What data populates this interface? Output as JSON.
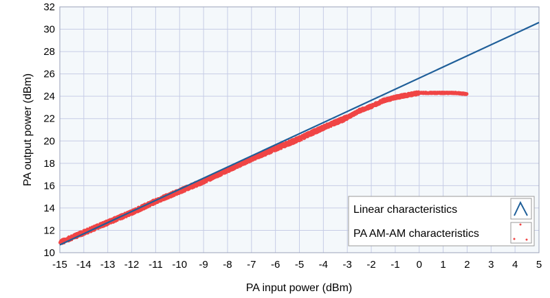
{
  "chart_data": {
    "type": "scatter",
    "title": "",
    "xlabel": "PA input power (dBm)",
    "ylabel": "PA output power (dBm)",
    "xlim": [
      -15,
      5
    ],
    "ylim": [
      10,
      32
    ],
    "xticks": [
      -15,
      -14,
      -13,
      -12,
      -11,
      -10,
      -9,
      -8,
      -7,
      -6,
      -5,
      -4,
      -3,
      -2,
      -1,
      0,
      1,
      2,
      3,
      4,
      5
    ],
    "xtick_labels": [
      "-15",
      "-14",
      "-13",
      "-12",
      "-11",
      "-10",
      "-9",
      "-8",
      "-7",
      "-6",
      "-5",
      "-4",
      "-3",
      "-2",
      "-1",
      "0",
      "1",
      "2",
      "3",
      "4",
      "5"
    ],
    "yticks": [
      10,
      12,
      14,
      16,
      18,
      20,
      22,
      24,
      26,
      28,
      30,
      32
    ],
    "ytick_labels": [
      "10",
      "12",
      "14",
      "16",
      "18",
      "20",
      "22",
      "24",
      "26",
      "28",
      "30",
      "32"
    ],
    "grid": true,
    "legend_position": "bottom-right",
    "series": [
      {
        "name": "Linear characteristics",
        "kind": "line",
        "color": "#1f5f99",
        "x": [
          -15,
          5
        ],
        "y": [
          10.7,
          30.6
        ]
      },
      {
        "name": "PA AM-AM characteristics",
        "kind": "scatter",
        "color": "#f04545",
        "x": [
          -15,
          -14,
          -13,
          -12,
          -11,
          -10,
          -9,
          -8,
          -7,
          -6,
          -5,
          -4,
          -3,
          -2.5,
          -2,
          -1.5,
          -1,
          -0.5,
          0,
          0.5,
          1,
          1.5,
          2
        ],
        "y": [
          10.9,
          11.8,
          12.7,
          13.6,
          14.6,
          15.5,
          16.4,
          17.4,
          18.4,
          19.3,
          20.2,
          21.2,
          22.1,
          22.7,
          23.1,
          23.6,
          23.9,
          24.1,
          24.3,
          24.3,
          24.3,
          24.3,
          24.2
        ]
      }
    ]
  }
}
